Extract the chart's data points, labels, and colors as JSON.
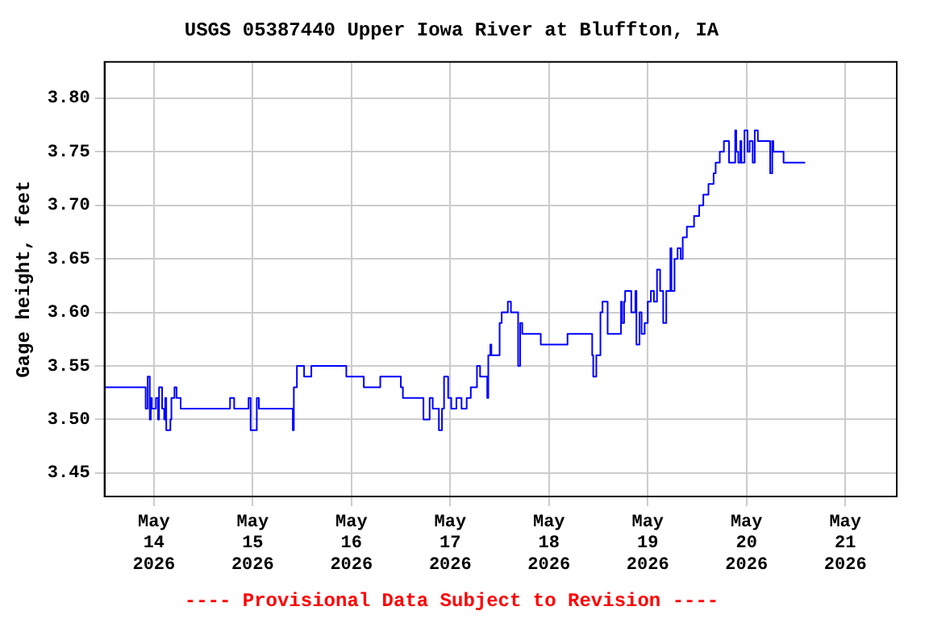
{
  "chart_data": {
    "type": "step",
    "title": "USGS 05387440 Upper Iowa River at Bluffton, IA",
    "ylabel": "Gage height, feet",
    "annotations": [
      "---- Provisional Data Subject to Revision ----"
    ],
    "xlim": [
      "2026-05-13T12:00",
      "2026-05-21T12:30"
    ],
    "xticks": [
      {
        "value": "2026-05-14",
        "label": "May\n14\n2026"
      },
      {
        "value": "2026-05-15",
        "label": "May\n15\n2026"
      },
      {
        "value": "2026-05-16",
        "label": "May\n16\n2026"
      },
      {
        "value": "2026-05-17",
        "label": "May\n17\n2026"
      },
      {
        "value": "2026-05-18",
        "label": "May\n18\n2026"
      },
      {
        "value": "2026-05-19",
        "label": "May\n19\n2026"
      },
      {
        "value": "2026-05-20",
        "label": "May\n20\n2026"
      },
      {
        "value": "2026-05-21",
        "label": "May\n21\n2026"
      }
    ],
    "ylim": [
      3.428,
      3.834
    ],
    "yticks": [
      3.45,
      {
        "value": 3.5,
        "label": "3.50"
      },
      3.55,
      {
        "value": 3.6,
        "label": "3.60"
      },
      3.65,
      {
        "value": 3.7,
        "label": "3.70"
      },
      3.75,
      {
        "value": 3.8,
        "label": "3.80"
      }
    ],
    "grid": true,
    "marker": "none",
    "line_style": "solid",
    "series": [
      {
        "color": "#0000ff",
        "x": [
          "2026-05-13T12:00",
          "2026-05-13T22:00",
          "2026-05-13T22:30",
          "2026-05-13T23:00",
          "2026-05-13T23:15",
          "2026-05-13T23:30",
          "2026-05-14T00:30",
          "2026-05-14T01:00",
          "2026-05-14T01:15",
          "2026-05-14T02:00",
          "2026-05-14T02:30",
          "2026-05-14T02:45",
          "2026-05-14T03:00",
          "2026-05-14T04:00",
          "2026-05-14T04:15",
          "2026-05-14T05:00",
          "2026-05-14T05:30",
          "2026-05-14T06:30",
          "2026-05-14T18:30",
          "2026-05-14T19:30",
          "2026-05-14T23:00",
          "2026-05-14T23:30",
          "2026-05-15T01:00",
          "2026-05-15T01:30",
          "2026-05-15T04:15",
          "2026-05-15T09:45",
          "2026-05-15T10:00",
          "2026-05-15T10:45",
          "2026-05-15T12:30",
          "2026-05-15T14:15",
          "2026-05-15T22:45",
          "2026-05-16T03:00",
          "2026-05-16T07:00",
          "2026-05-16T12:00",
          "2026-05-16T12:30",
          "2026-05-16T17:30",
          "2026-05-16T19:00",
          "2026-05-16T19:45",
          "2026-05-16T21:15",
          "2026-05-16T22:00",
          "2026-05-16T22:30",
          "2026-05-16T23:30",
          "2026-05-17T00:15",
          "2026-05-17T01:30",
          "2026-05-17T02:45",
          "2026-05-17T04:00",
          "2026-05-17T05:00",
          "2026-05-17T06:30",
          "2026-05-17T07:15",
          "2026-05-17T09:00",
          "2026-05-17T09:15",
          "2026-05-17T09:45",
          "2026-05-17T10:00",
          "2026-05-17T12:00",
          "2026-05-17T12:30",
          "2026-05-17T14:00",
          "2026-05-17T14:45",
          "2026-05-17T16:30",
          "2026-05-17T17:00",
          "2026-05-17T17:30",
          "2026-05-17T22:00",
          "2026-05-18T04:30",
          "2026-05-18T10:30",
          "2026-05-18T10:45",
          "2026-05-18T11:30",
          "2026-05-18T12:30",
          "2026-05-18T13:00",
          "2026-05-18T14:15",
          "2026-05-18T17:30",
          "2026-05-18T17:45",
          "2026-05-18T18:15",
          "2026-05-18T18:30",
          "2026-05-18T20:00",
          "2026-05-18T21:00",
          "2026-05-18T21:15",
          "2026-05-18T22:00",
          "2026-05-18T22:30",
          "2026-05-18T23:15",
          "2026-05-19T00:00",
          "2026-05-19T00:45",
          "2026-05-19T01:30",
          "2026-05-19T02:15",
          "2026-05-19T03:00",
          "2026-05-19T03:45",
          "2026-05-19T04:30",
          "2026-05-19T05:30",
          "2026-05-19T05:45",
          "2026-05-19T06:30",
          "2026-05-19T07:15",
          "2026-05-19T08:00",
          "2026-05-19T08:30",
          "2026-05-19T09:30",
          "2026-05-19T11:15",
          "2026-05-19T12:30",
          "2026-05-19T13:30",
          "2026-05-19T14:45",
          "2026-05-19T16:00",
          "2026-05-19T16:30",
          "2026-05-19T17:30",
          "2026-05-19T18:30",
          "2026-05-19T19:45",
          "2026-05-19T21:15",
          "2026-05-19T21:30",
          "2026-05-19T22:00",
          "2026-05-19T22:30",
          "2026-05-19T22:45",
          "2026-05-19T23:30",
          "2026-05-20T00:15",
          "2026-05-20T00:45",
          "2026-05-20T01:30",
          "2026-05-20T02:00",
          "2026-05-20T02:45",
          "2026-05-20T05:45",
          "2026-05-20T06:15",
          "2026-05-20T06:30",
          "2026-05-20T09:00",
          "2026-05-20T12:15",
          "2026-05-20T14:15"
        ],
        "values": [
          3.53,
          3.53,
          3.51,
          3.54,
          3.5,
          3.52,
          3.51,
          3.52,
          3.5,
          3.53,
          3.51,
          3.5,
          3.52,
          3.49,
          3.5,
          3.52,
          3.53,
          3.52,
          3.51,
          3.52,
          3.51,
          3.52,
          3.49,
          3.52,
          3.51,
          3.51,
          3.49,
          3.53,
          3.55,
          3.54,
          3.55,
          3.54,
          3.53,
          3.54,
          3.53,
          3.52,
          3.5,
          3.52,
          3.51,
          3.49,
          3.51,
          3.54,
          3.52,
          3.51,
          3.52,
          3.51,
          3.52,
          3.53,
          3.55,
          3.54,
          3.52,
          3.56,
          3.57,
          3.56,
          3.59,
          3.6,
          3.61,
          3.6,
          3.55,
          3.59,
          3.58,
          3.57,
          3.58,
          3.56,
          3.54,
          3.56,
          3.6,
          3.61,
          3.58,
          3.61,
          3.59,
          3.61,
          3.62,
          3.6,
          3.62,
          3.57,
          3.6,
          3.58,
          3.59,
          3.61,
          3.62,
          3.61,
          3.64,
          3.62,
          3.59,
          3.62,
          3.66,
          3.62,
          3.65,
          3.66,
          3.65,
          3.67,
          3.68,
          3.69,
          3.7,
          3.71,
          3.72,
          3.73,
          3.74,
          3.75,
          3.76,
          3.74,
          3.77,
          3.75,
          3.74,
          3.76,
          3.74,
          3.77,
          3.75,
          3.76,
          3.74,
          3.77,
          3.76,
          3.73,
          3.76,
          3.75,
          3.74,
          3.74
        ]
      }
    ]
  }
}
